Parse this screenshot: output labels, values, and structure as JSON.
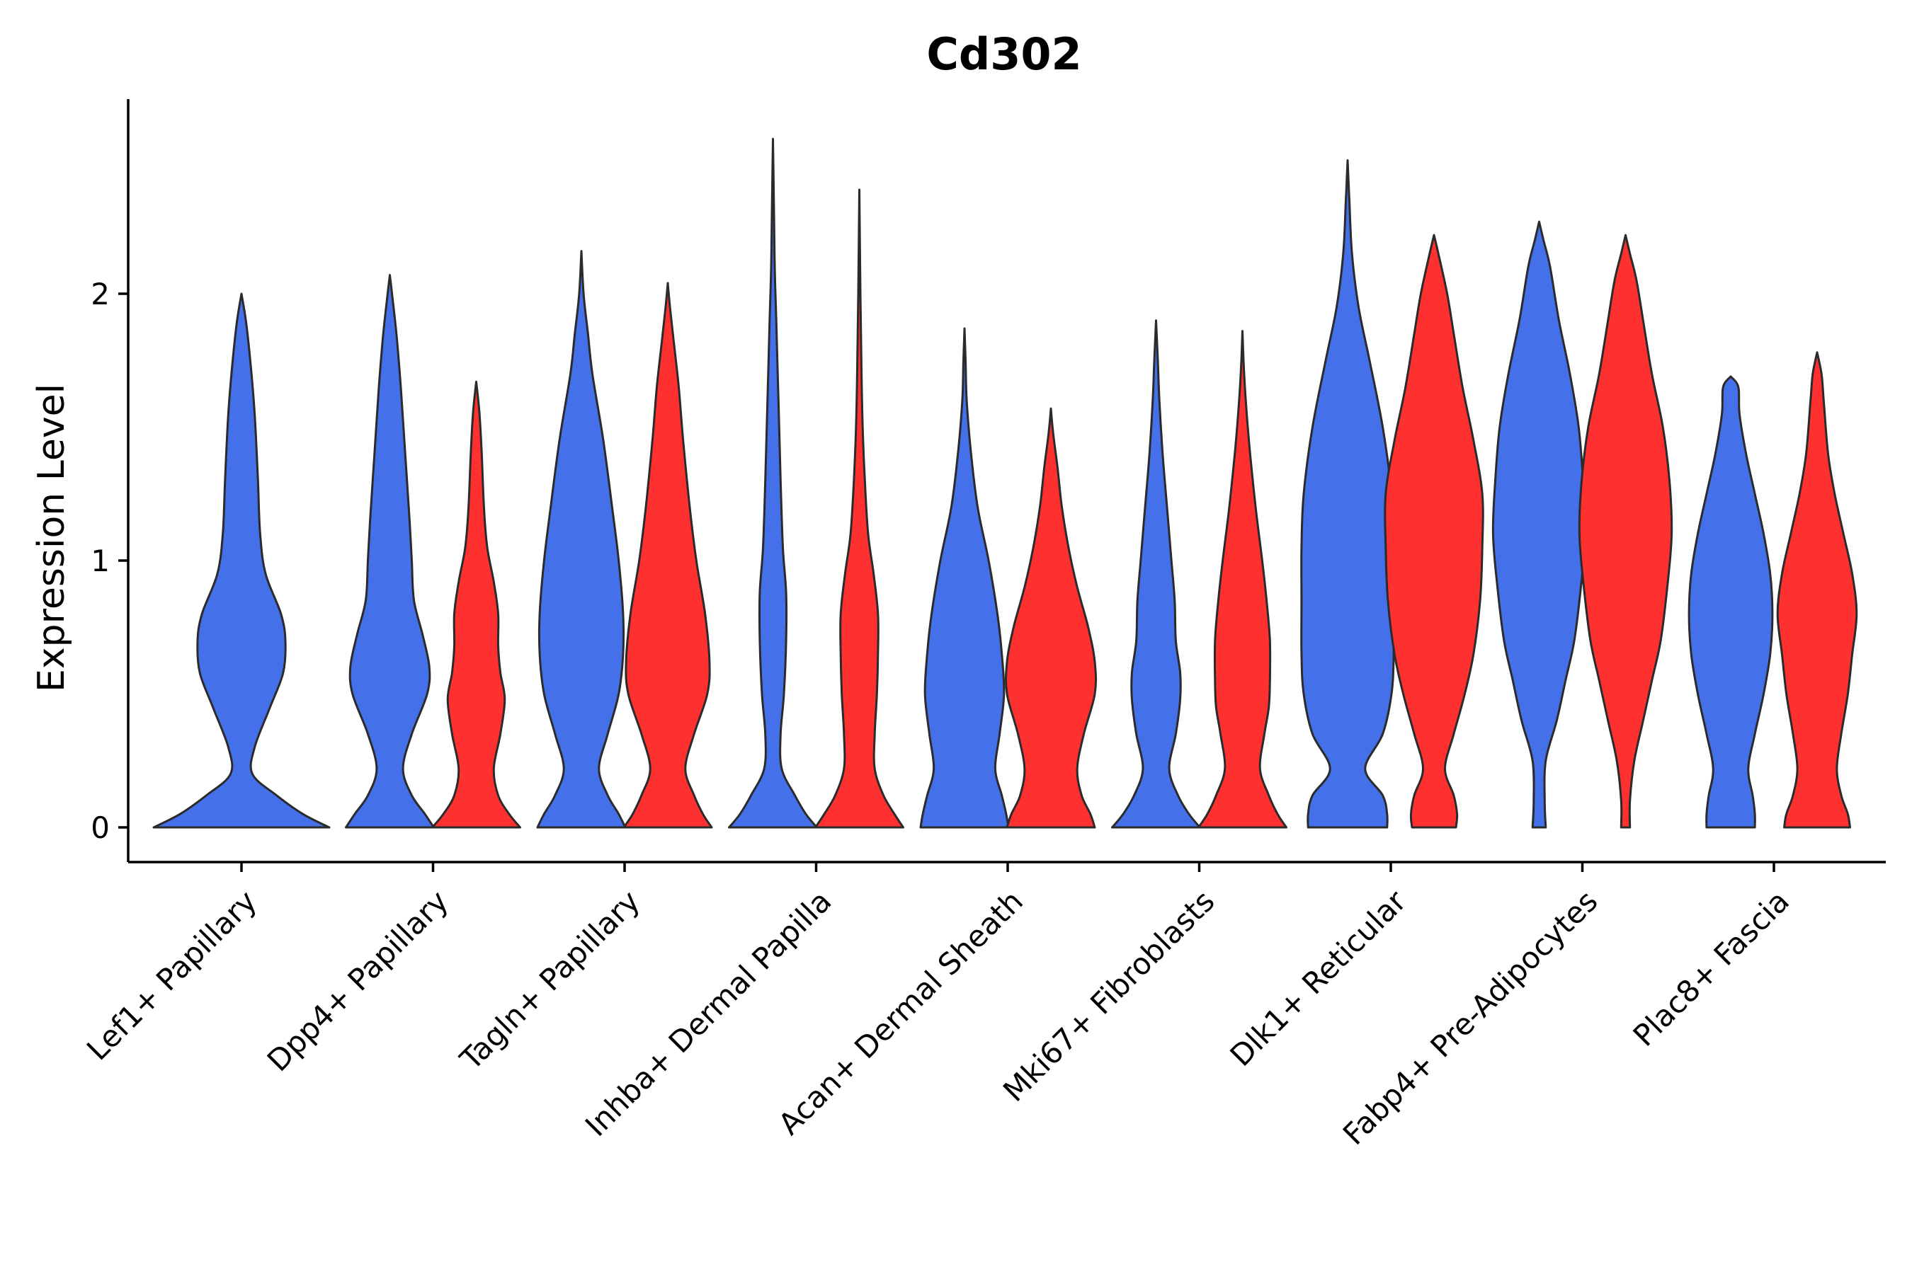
{
  "chart_data": {
    "type": "violin",
    "title": "Cd302",
    "xlabel": "",
    "ylabel": "Expression Level",
    "ylim": [
      -0.13,
      2.72
    ],
    "yticks": [
      0,
      1,
      2
    ],
    "grid": false,
    "legend": "none",
    "colors": {
      "group1": "#4470ea",
      "group2": "#ff3030"
    },
    "categories": [
      "Lef1+ Papillary",
      "Dpp4+ Papillary",
      "Tagln+ Papillary",
      "Inhba+ Dermal Papilla",
      "Acan+ Dermal Sheath",
      "Mki67+ Fibroblasts",
      "Dlk1+ Reticular",
      "Fabp4+ Pre-Adipocytes",
      "Plac8+ Fascia"
    ],
    "violins": [
      {
        "category": "Lef1+ Papillary",
        "group": "group1",
        "max": 2.0,
        "profile": [
          [
            0,
            0.4
          ],
          [
            0.05,
            0.28
          ],
          [
            0.12,
            0.16
          ],
          [
            0.2,
            0.05
          ],
          [
            0.3,
            0.06
          ],
          [
            0.45,
            0.13
          ],
          [
            0.58,
            0.19
          ],
          [
            0.7,
            0.2
          ],
          [
            0.8,
            0.18
          ],
          [
            0.95,
            0.11
          ],
          [
            1.1,
            0.085
          ],
          [
            1.3,
            0.075
          ],
          [
            1.55,
            0.06
          ],
          [
            1.75,
            0.04
          ],
          [
            1.9,
            0.02
          ],
          [
            2.0,
            0.0
          ]
        ]
      },
      {
        "category": "Dpp4+ Papillary",
        "group": "group1",
        "max": 2.07,
        "profile": [
          [
            0,
            0.2
          ],
          [
            0.05,
            0.16
          ],
          [
            0.12,
            0.1
          ],
          [
            0.22,
            0.06
          ],
          [
            0.35,
            0.1
          ],
          [
            0.5,
            0.17
          ],
          [
            0.6,
            0.18
          ],
          [
            0.72,
            0.15
          ],
          [
            0.85,
            0.11
          ],
          [
            1.0,
            0.1
          ],
          [
            1.15,
            0.09
          ],
          [
            1.4,
            0.07
          ],
          [
            1.65,
            0.05
          ],
          [
            1.85,
            0.03
          ],
          [
            2.0,
            0.01
          ],
          [
            2.07,
            0.0
          ]
        ]
      },
      {
        "category": "Dpp4+ Papillary",
        "group": "group2",
        "max": 1.67,
        "profile": [
          [
            0,
            0.2
          ],
          [
            0.05,
            0.15
          ],
          [
            0.12,
            0.1
          ],
          [
            0.22,
            0.08
          ],
          [
            0.35,
            0.11
          ],
          [
            0.48,
            0.13
          ],
          [
            0.58,
            0.11
          ],
          [
            0.68,
            0.1
          ],
          [
            0.8,
            0.1
          ],
          [
            0.92,
            0.08
          ],
          [
            1.05,
            0.05
          ],
          [
            1.2,
            0.035
          ],
          [
            1.4,
            0.025
          ],
          [
            1.55,
            0.015
          ],
          [
            1.67,
            0.0
          ]
        ]
      },
      {
        "category": "Tagln+ Papillary",
        "group": "group1",
        "max": 2.16,
        "profile": [
          [
            0,
            0.2
          ],
          [
            0.05,
            0.17
          ],
          [
            0.12,
            0.12
          ],
          [
            0.22,
            0.08
          ],
          [
            0.35,
            0.12
          ],
          [
            0.5,
            0.17
          ],
          [
            0.65,
            0.19
          ],
          [
            0.8,
            0.19
          ],
          [
            1.0,
            0.17
          ],
          [
            1.2,
            0.14
          ],
          [
            1.45,
            0.1
          ],
          [
            1.7,
            0.05
          ],
          [
            1.85,
            0.03
          ],
          [
            2.0,
            0.01
          ],
          [
            2.16,
            0.0
          ]
        ]
      },
      {
        "category": "Tagln+ Papillary",
        "group": "group2",
        "max": 2.04,
        "profile": [
          [
            0,
            0.2
          ],
          [
            0.05,
            0.16
          ],
          [
            0.12,
            0.12
          ],
          [
            0.22,
            0.08
          ],
          [
            0.35,
            0.12
          ],
          [
            0.5,
            0.18
          ],
          [
            0.62,
            0.19
          ],
          [
            0.8,
            0.17
          ],
          [
            1.0,
            0.13
          ],
          [
            1.2,
            0.1
          ],
          [
            1.45,
            0.07
          ],
          [
            1.65,
            0.05
          ],
          [
            1.8,
            0.03
          ],
          [
            1.95,
            0.01
          ],
          [
            2.04,
            0.0
          ]
        ]
      },
      {
        "category": "Inhba+ Dermal Papilla",
        "group": "group1",
        "max": 2.58,
        "profile": [
          [
            0,
            0.2
          ],
          [
            0.05,
            0.15
          ],
          [
            0.12,
            0.1
          ],
          [
            0.22,
            0.04
          ],
          [
            0.35,
            0.035
          ],
          [
            0.5,
            0.05
          ],
          [
            0.7,
            0.06
          ],
          [
            0.88,
            0.06
          ],
          [
            1.05,
            0.045
          ],
          [
            1.3,
            0.035
          ],
          [
            1.6,
            0.025
          ],
          [
            1.9,
            0.015
          ],
          [
            2.1,
            0.008
          ],
          [
            2.3,
            0.005
          ],
          [
            2.58,
            0.0
          ]
        ]
      },
      {
        "category": "Inhba+ Dermal Papilla",
        "group": "group2",
        "max": 2.39,
        "profile": [
          [
            0,
            0.2
          ],
          [
            0.05,
            0.16
          ],
          [
            0.12,
            0.11
          ],
          [
            0.22,
            0.07
          ],
          [
            0.35,
            0.07
          ],
          [
            0.5,
            0.08
          ],
          [
            0.65,
            0.085
          ],
          [
            0.8,
            0.085
          ],
          [
            0.95,
            0.065
          ],
          [
            1.1,
            0.04
          ],
          [
            1.3,
            0.025
          ],
          [
            1.5,
            0.015
          ],
          [
            1.7,
            0.01
          ],
          [
            2.0,
            0.005
          ],
          [
            2.39,
            0.0
          ]
        ]
      },
      {
        "category": "Acan+ Dermal Sheath",
        "group": "group1",
        "max": 1.87,
        "profile": [
          [
            0,
            0.2
          ],
          [
            0.05,
            0.19
          ],
          [
            0.12,
            0.17
          ],
          [
            0.22,
            0.14
          ],
          [
            0.35,
            0.16
          ],
          [
            0.5,
            0.18
          ],
          [
            0.65,
            0.17
          ],
          [
            0.8,
            0.15
          ],
          [
            1.0,
            0.11
          ],
          [
            1.2,
            0.06
          ],
          [
            1.4,
            0.03
          ],
          [
            1.6,
            0.01
          ],
          [
            1.75,
            0.005
          ],
          [
            1.87,
            0.0
          ]
        ]
      },
      {
        "category": "Acan+ Dermal Sheath",
        "group": "group2",
        "max": 1.57,
        "profile": [
          [
            0,
            0.2
          ],
          [
            0.05,
            0.18
          ],
          [
            0.12,
            0.14
          ],
          [
            0.22,
            0.12
          ],
          [
            0.35,
            0.15
          ],
          [
            0.5,
            0.2
          ],
          [
            0.62,
            0.2
          ],
          [
            0.75,
            0.17
          ],
          [
            0.9,
            0.12
          ],
          [
            1.05,
            0.08
          ],
          [
            1.2,
            0.05
          ],
          [
            1.35,
            0.03
          ],
          [
            1.48,
            0.01
          ],
          [
            1.57,
            0.0
          ]
        ]
      },
      {
        "category": "Mki67+ Fibroblasts",
        "group": "group1",
        "max": 1.9,
        "profile": [
          [
            0,
            0.2
          ],
          [
            0.05,
            0.15
          ],
          [
            0.12,
            0.1
          ],
          [
            0.22,
            0.06
          ],
          [
            0.35,
            0.09
          ],
          [
            0.48,
            0.11
          ],
          [
            0.58,
            0.11
          ],
          [
            0.7,
            0.09
          ],
          [
            0.85,
            0.085
          ],
          [
            1.0,
            0.07
          ],
          [
            1.2,
            0.05
          ],
          [
            1.4,
            0.03
          ],
          [
            1.6,
            0.015
          ],
          [
            1.75,
            0.008
          ],
          [
            1.9,
            0.0
          ]
        ]
      },
      {
        "category": "Mki67+ Fibroblasts",
        "group": "group2",
        "max": 1.86,
        "profile": [
          [
            0,
            0.2
          ],
          [
            0.05,
            0.16
          ],
          [
            0.12,
            0.12
          ],
          [
            0.22,
            0.08
          ],
          [
            0.35,
            0.1
          ],
          [
            0.45,
            0.12
          ],
          [
            0.55,
            0.125
          ],
          [
            0.7,
            0.125
          ],
          [
            0.85,
            0.11
          ],
          [
            1.0,
            0.09
          ],
          [
            1.2,
            0.06
          ],
          [
            1.4,
            0.035
          ],
          [
            1.6,
            0.015
          ],
          [
            1.75,
            0.005
          ],
          [
            1.86,
            0.0
          ]
        ]
      },
      {
        "category": "Dlk1+ Reticular",
        "group": "group1",
        "max": 2.5,
        "profile": [
          [
            0,
            0.18
          ],
          [
            0.05,
            0.18
          ],
          [
            0.12,
            0.16
          ],
          [
            0.22,
            0.08
          ],
          [
            0.35,
            0.16
          ],
          [
            0.5,
            0.2
          ],
          [
            0.65,
            0.21
          ],
          [
            0.85,
            0.21
          ],
          [
            1.05,
            0.21
          ],
          [
            1.25,
            0.2
          ],
          [
            1.5,
            0.16
          ],
          [
            1.75,
            0.1
          ],
          [
            1.95,
            0.05
          ],
          [
            2.15,
            0.02
          ],
          [
            2.35,
            0.008
          ],
          [
            2.5,
            0.0
          ]
        ]
      },
      {
        "category": "Dlk1+ Reticular",
        "group": "group2",
        "max": 2.22,
        "profile": [
          [
            0,
            0.1
          ],
          [
            0.05,
            0.105
          ],
          [
            0.12,
            0.09
          ],
          [
            0.22,
            0.05
          ],
          [
            0.35,
            0.09
          ],
          [
            0.5,
            0.14
          ],
          [
            0.65,
            0.18
          ],
          [
            0.85,
            0.21
          ],
          [
            1.05,
            0.22
          ],
          [
            1.25,
            0.22
          ],
          [
            1.45,
            0.18
          ],
          [
            1.65,
            0.13
          ],
          [
            1.85,
            0.09
          ],
          [
            2.0,
            0.06
          ],
          [
            2.15,
            0.02
          ],
          [
            2.22,
            0.0
          ]
        ]
      },
      {
        "category": "Fabp4+ Pre-Adipocytes",
        "group": "group1",
        "max": 2.27,
        "profile": [
          [
            0,
            0.03
          ],
          [
            0.1,
            0.025
          ],
          [
            0.25,
            0.03
          ],
          [
            0.4,
            0.08
          ],
          [
            0.55,
            0.12
          ],
          [
            0.7,
            0.16
          ],
          [
            0.9,
            0.19
          ],
          [
            1.1,
            0.21
          ],
          [
            1.3,
            0.2
          ],
          [
            1.5,
            0.18
          ],
          [
            1.7,
            0.14
          ],
          [
            1.9,
            0.09
          ],
          [
            2.1,
            0.05
          ],
          [
            2.2,
            0.02
          ],
          [
            2.27,
            0.0
          ]
        ]
      },
      {
        "category": "Fabp4+ Pre-Adipocytes",
        "group": "group2",
        "max": 2.22,
        "profile": [
          [
            0,
            0.02
          ],
          [
            0.1,
            0.02
          ],
          [
            0.25,
            0.04
          ],
          [
            0.4,
            0.08
          ],
          [
            0.55,
            0.12
          ],
          [
            0.7,
            0.16
          ],
          [
            0.9,
            0.19
          ],
          [
            1.1,
            0.21
          ],
          [
            1.3,
            0.2
          ],
          [
            1.5,
            0.17
          ],
          [
            1.7,
            0.12
          ],
          [
            1.9,
            0.08
          ],
          [
            2.05,
            0.05
          ],
          [
            2.15,
            0.02
          ],
          [
            2.22,
            0.0
          ]
        ]
      },
      {
        "category": "Plac8+ Fascia",
        "group": "group1",
        "max": 1.69,
        "profile": [
          [
            0,
            0.11
          ],
          [
            0.05,
            0.11
          ],
          [
            0.12,
            0.1
          ],
          [
            0.22,
            0.08
          ],
          [
            0.35,
            0.11
          ],
          [
            0.5,
            0.15
          ],
          [
            0.65,
            0.18
          ],
          [
            0.8,
            0.19
          ],
          [
            0.95,
            0.18
          ],
          [
            1.1,
            0.15
          ],
          [
            1.25,
            0.11
          ],
          [
            1.4,
            0.07
          ],
          [
            1.55,
            0.04
          ],
          [
            1.65,
            0.035
          ],
          [
            1.69,
            0.0
          ]
        ]
      },
      {
        "category": "Plac8+ Fascia",
        "group": "group2",
        "max": 1.78,
        "profile": [
          [
            0,
            0.15
          ],
          [
            0.05,
            0.14
          ],
          [
            0.12,
            0.11
          ],
          [
            0.22,
            0.09
          ],
          [
            0.35,
            0.11
          ],
          [
            0.5,
            0.14
          ],
          [
            0.65,
            0.16
          ],
          [
            0.8,
            0.18
          ],
          [
            0.95,
            0.16
          ],
          [
            1.1,
            0.12
          ],
          [
            1.25,
            0.08
          ],
          [
            1.4,
            0.05
          ],
          [
            1.6,
            0.03
          ],
          [
            1.7,
            0.02
          ],
          [
            1.78,
            0.0
          ]
        ]
      }
    ]
  }
}
